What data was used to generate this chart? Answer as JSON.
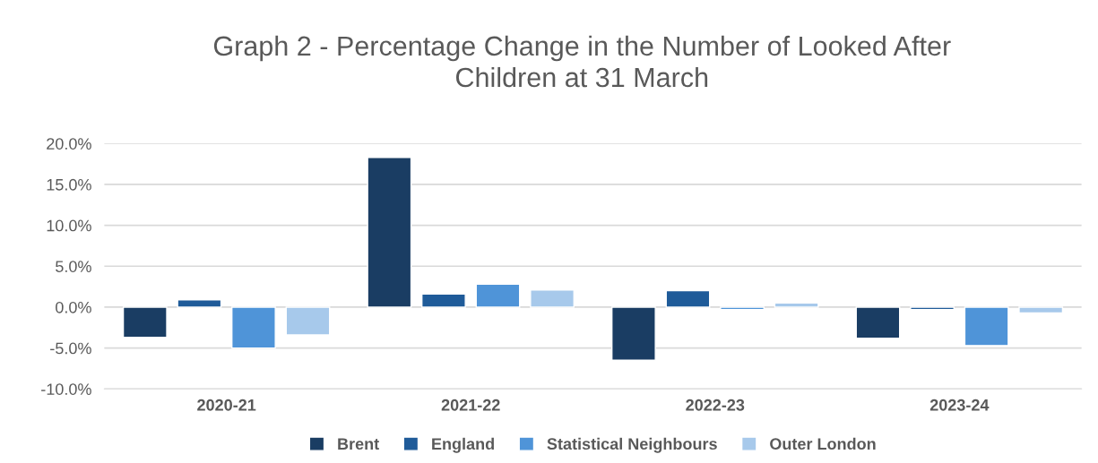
{
  "chart_data": {
    "type": "bar",
    "title": "Graph 2 - Percentage Change in the Number of Looked After\nChildren at 31 March",
    "categories": [
      "2020-21",
      "2021-22",
      "2022-23",
      "2023-24"
    ],
    "series": [
      {
        "name": "Brent",
        "color": "#1a3d63",
        "values": [
          -3.7,
          18.3,
          -6.5,
          -3.8
        ]
      },
      {
        "name": "England",
        "color": "#1f5b99",
        "values": [
          0.9,
          1.6,
          2.0,
          -0.3
        ]
      },
      {
        "name": "Statistical Neighbours",
        "color": "#4f94d8",
        "values": [
          -5.0,
          2.8,
          -0.3,
          -4.7
        ]
      },
      {
        "name": "Outer London",
        "color": "#a7c9eb",
        "values": [
          -3.4,
          2.1,
          0.5,
          -0.7
        ]
      }
    ],
    "ylim": [
      -10,
      20
    ],
    "yticks": [
      {
        "value": -10,
        "label": "-10.0%"
      },
      {
        "value": -5,
        "label": "-5.0%"
      },
      {
        "value": 0,
        "label": "0.0%"
      },
      {
        "value": 5,
        "label": "5.0%"
      },
      {
        "value": 10,
        "label": "10.0%"
      },
      {
        "value": 15,
        "label": "15.0%"
      },
      {
        "value": 20,
        "label": "20.0%"
      }
    ],
    "grid": "y",
    "legend": "bottom"
  }
}
